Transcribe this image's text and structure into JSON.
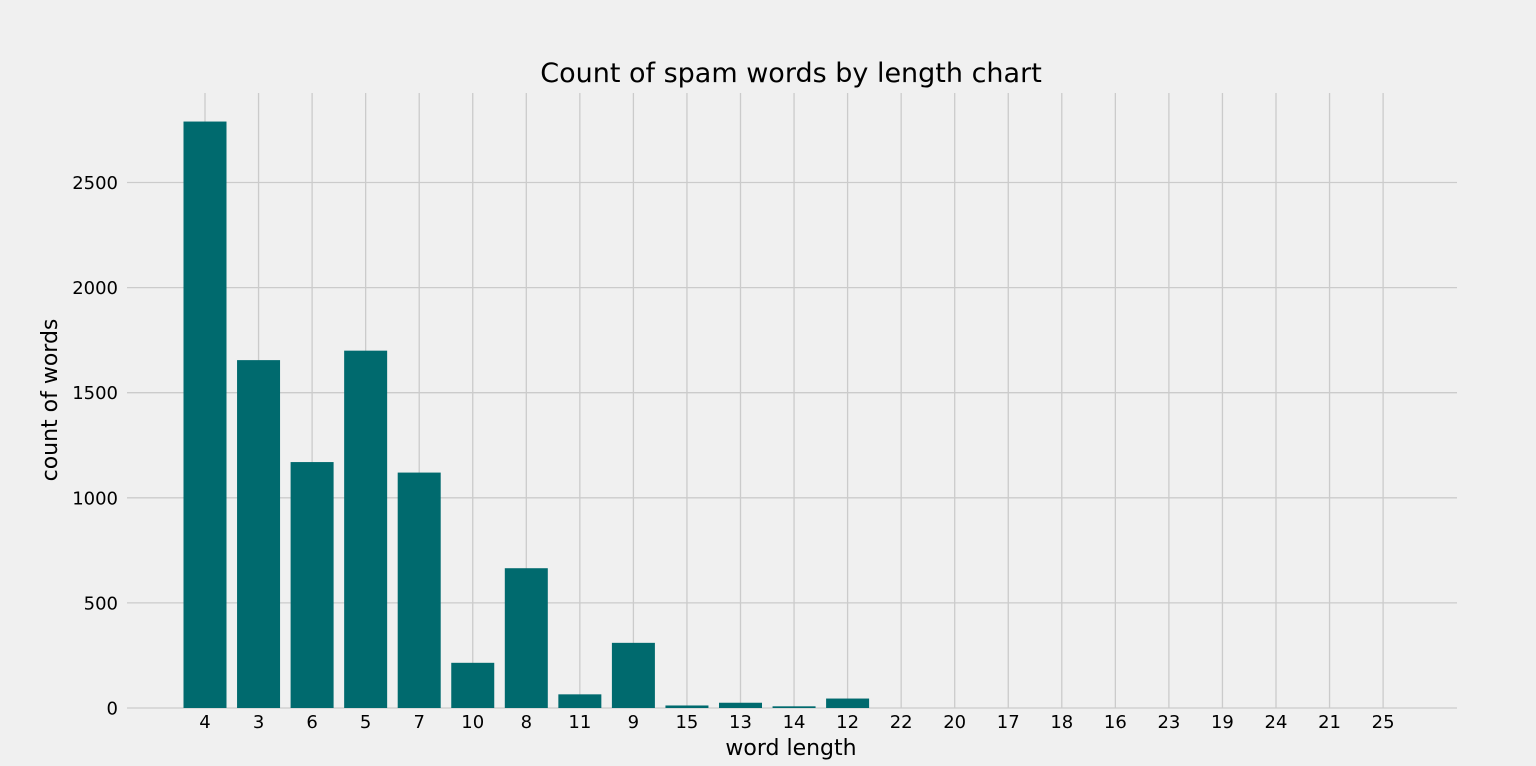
{
  "chart_data": {
    "type": "bar",
    "title": "Count of spam words by length chart",
    "xlabel": "word length",
    "ylabel": "count of words",
    "categories": [
      "4",
      "3",
      "6",
      "5",
      "7",
      "10",
      "8",
      "11",
      "9",
      "15",
      "13",
      "14",
      "12",
      "22",
      "20",
      "17",
      "18",
      "16",
      "23",
      "19",
      "24",
      "21",
      "25"
    ],
    "values": [
      2790,
      1655,
      1170,
      1700,
      1120,
      215,
      665,
      65,
      310,
      12,
      25,
      8,
      45,
      0,
      0,
      0,
      0,
      0,
      0,
      0,
      0,
      0,
      0
    ],
    "yticks": [
      0,
      500,
      1000,
      1500,
      2000,
      2500
    ],
    "ylim": [
      0,
      2900
    ],
    "grid": true,
    "legend": "none",
    "bar_color": "#006a6e",
    "background_color": "#f0f0f0",
    "grid_color": "#cbcbcb"
  }
}
